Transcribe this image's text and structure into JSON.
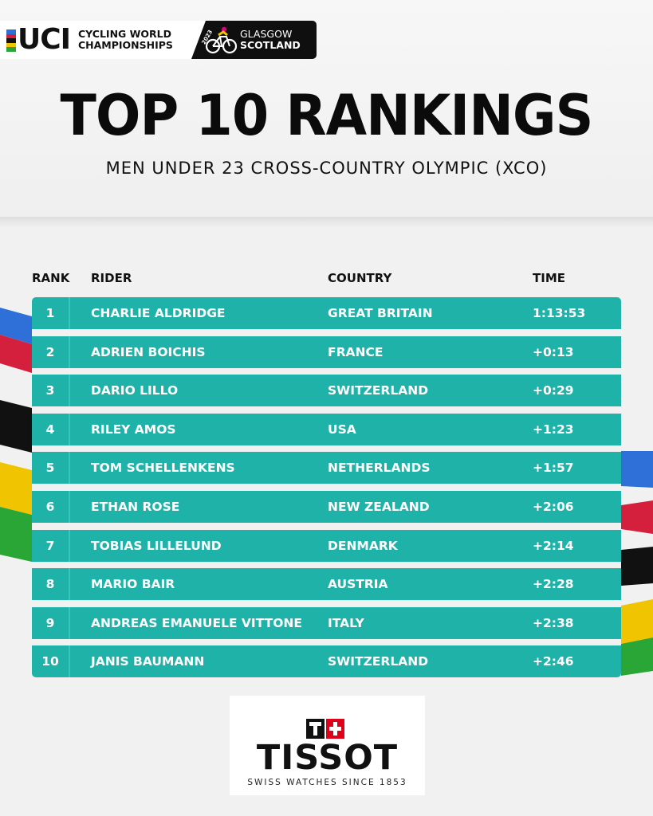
{
  "header": {
    "uci_logo_text": "UCI",
    "event_line1": "CYCLING WORLD",
    "event_line2": "CHAMPIONSHIPS",
    "host_line1": "GLASGOW",
    "host_line2": "SCOTLAND",
    "year_badge": "2023",
    "uci_stripe_colors": [
      "#2e6fd8",
      "#d4203c",
      "#111111",
      "#f1c400",
      "#2aa637"
    ]
  },
  "title": "TOP 10 RANKINGS",
  "subtitle": "MEN UNDER 23 CROSS-COUNTRY OLYMPIC (XCO)",
  "table": {
    "headers": {
      "rank": "RANK",
      "rider": "RIDER",
      "country": "COUNTRY",
      "time": "TIME"
    },
    "rows": [
      {
        "rank": "1",
        "rider": "CHARLIE ALDRIDGE",
        "country": "GREAT BRITAIN",
        "time": "1:13:53"
      },
      {
        "rank": "2",
        "rider": "ADRIEN BOICHIS",
        "country": "FRANCE",
        "time": "+0:13"
      },
      {
        "rank": "3",
        "rider": "DARIO LILLO",
        "country": "SWITZERLAND",
        "time": "+0:29"
      },
      {
        "rank": "4",
        "rider": "RILEY AMOS",
        "country": "USA",
        "time": "+1:23"
      },
      {
        "rank": "5",
        "rider": "TOM SCHELLENKENS",
        "country": "NETHERLANDS",
        "time": "+1:57"
      },
      {
        "rank": "6",
        "rider": "ETHAN ROSE",
        "country": "NEW ZEALAND",
        "time": "+2:06"
      },
      {
        "rank": "7",
        "rider": "TOBIAS LILLELUND",
        "country": "DENMARK",
        "time": "+2:14"
      },
      {
        "rank": "8",
        "rider": "MARIO BAIR",
        "country": "AUSTRIA",
        "time": "+2:28"
      },
      {
        "rank": "9",
        "rider": "ANDREAS EMANUELE VITTONE",
        "country": "ITALY",
        "time": "+2:38"
      },
      {
        "rank": "10",
        "rider": "JANIS BAUMANN",
        "country": "SWITZERLAND",
        "time": "+2:46"
      }
    ]
  },
  "sponsor": {
    "brand": "TISSOT",
    "tagline": "SWISS WATCHES SINCE 1853",
    "mark_letter": "T",
    "mark_color": "#e1001a"
  },
  "colors": {
    "row_teal": "#1fb2a9",
    "stripe_blue": "#2e6fd8",
    "stripe_red": "#d4203c",
    "stripe_black": "#111111",
    "stripe_yellow": "#f1c400",
    "stripe_green": "#2aa637"
  }
}
